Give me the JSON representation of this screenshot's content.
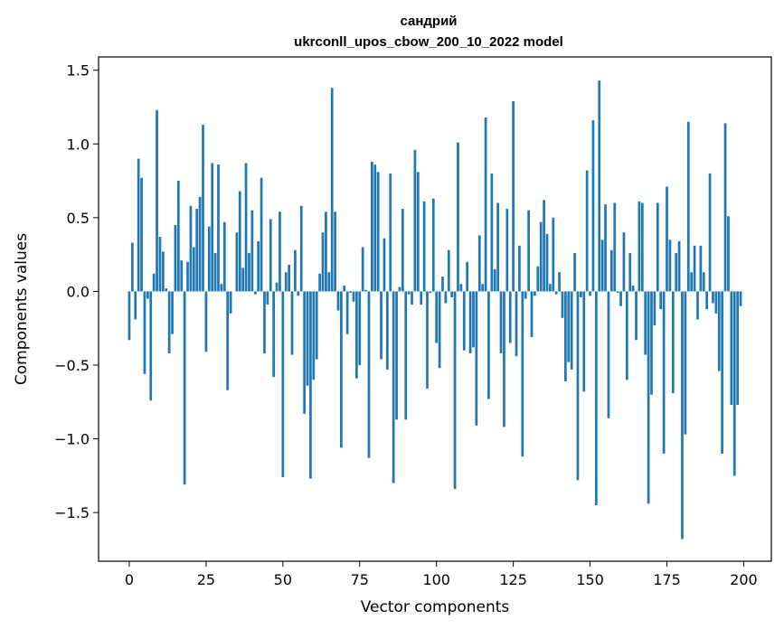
{
  "chart_data": {
    "type": "bar",
    "title": "сандрий",
    "subtitle": "ukrconll_upos_cbow_200_10_2022 model",
    "xlabel": "Vector components",
    "ylabel": "Components values",
    "xlim": [
      -10,
      209
    ],
    "ylim": [
      -1.83,
      1.59
    ],
    "xticks": [
      0,
      25,
      50,
      75,
      100,
      125,
      150,
      175,
      200
    ],
    "yticks": [
      -1.5,
      -1.0,
      -0.5,
      0.0,
      0.5,
      1.0,
      1.5
    ],
    "ytick_labels": [
      "−1.5",
      "−1.0",
      "−0.5",
      "0.0",
      "0.5",
      "1.0",
      "1.5"
    ],
    "bar_color": "#1f77b4",
    "grid": false,
    "x": [
      0,
      1,
      2,
      3,
      4,
      5,
      6,
      7,
      8,
      9,
      10,
      11,
      12,
      13,
      14,
      15,
      16,
      17,
      18,
      19,
      20,
      21,
      22,
      23,
      24,
      25,
      26,
      27,
      28,
      29,
      30,
      31,
      32,
      33,
      34,
      35,
      36,
      37,
      38,
      39,
      40,
      41,
      42,
      43,
      44,
      45,
      46,
      47,
      48,
      49,
      50,
      51,
      52,
      53,
      54,
      55,
      56,
      57,
      58,
      59,
      60,
      61,
      62,
      63,
      64,
      65,
      66,
      67,
      68,
      69,
      70,
      71,
      72,
      73,
      74,
      75,
      76,
      77,
      78,
      79,
      80,
      81,
      82,
      83,
      84,
      85,
      86,
      87,
      88,
      89,
      90,
      91,
      92,
      93,
      94,
      95,
      96,
      97,
      98,
      99,
      100,
      101,
      102,
      103,
      104,
      105,
      106,
      107,
      108,
      109,
      110,
      111,
      112,
      113,
      114,
      115,
      116,
      117,
      118,
      119,
      120,
      121,
      122,
      123,
      124,
      125,
      126,
      127,
      128,
      129,
      130,
      131,
      132,
      133,
      134,
      135,
      136,
      137,
      138,
      139,
      140,
      141,
      142,
      143,
      144,
      145,
      146,
      147,
      148,
      149,
      150,
      151,
      152,
      153,
      154,
      155,
      156,
      157,
      158,
      159,
      160,
      161,
      162,
      163,
      164,
      165,
      166,
      167,
      168,
      169,
      170,
      171,
      172,
      173,
      174,
      175,
      176,
      177,
      178,
      179,
      180,
      181,
      182,
      183,
      184,
      185,
      186,
      187,
      188,
      189,
      190,
      191,
      192,
      193,
      194,
      195,
      196,
      197,
      198,
      199
    ],
    "values": [
      -0.33,
      0.33,
      -0.19,
      0.9,
      0.77,
      -0.56,
      -0.05,
      -0.74,
      0.12,
      1.23,
      0.37,
      0.27,
      0.02,
      -0.42,
      -0.29,
      0.45,
      0.75,
      0.21,
      -1.31,
      0.2,
      0.58,
      0.3,
      0.56,
      0.64,
      1.13,
      -0.41,
      0.44,
      0.87,
      0.26,
      0.86,
      0.05,
      0.47,
      -0.67,
      -0.15,
      0.0,
      0.4,
      0.68,
      0.16,
      0.87,
      0.26,
      0.55,
      -0.02,
      0.34,
      0.77,
      -0.42,
      -0.09,
      0.49,
      -0.58,
      0.06,
      0.54,
      -1.26,
      0.13,
      0.18,
      -0.43,
      0.28,
      -0.03,
      0.58,
      -0.83,
      -0.64,
      -1.27,
      -0.6,
      -0.46,
      0.12,
      0.4,
      0.54,
      0.13,
      1.38,
      0.54,
      -0.13,
      -1.06,
      0.04,
      -0.29,
      -0.01,
      -0.07,
      -0.59,
      -0.5,
      0.3,
      0.01,
      -1.13,
      0.88,
      0.86,
      0.81,
      -0.46,
      0.36,
      -0.53,
      0.8,
      -1.3,
      -0.87,
      0.03,
      0.56,
      -0.87,
      -0.02,
      -0.09,
      0.96,
      0.81,
      -0.09,
      0.61,
      -0.66,
      -0.01,
      0.63,
      -0.35,
      -0.52,
      0.1,
      -0.08,
      0.28,
      -0.04,
      -1.34,
      1.01,
      0.05,
      -0.4,
      0.2,
      -0.42,
      -0.38,
      -0.91,
      0.38,
      0.05,
      1.18,
      -0.73,
      0.8,
      0.15,
      0.6,
      -0.42,
      -0.92,
      0.56,
      -0.35,
      1.29,
      -0.44,
      0.31,
      -1.12,
      -0.05,
      0.55,
      -0.31,
      -0.03,
      0.17,
      0.47,
      0.62,
      0.39,
      0.05,
      0.5,
      -0.02,
      0.13,
      -0.18,
      -0.61,
      -0.48,
      -0.53,
      0.26,
      -1.28,
      -0.04,
      -0.68,
      0.82,
      -0.03,
      1.16,
      -1.45,
      1.43,
      0.35,
      0.59,
      -0.86,
      0.28,
      0.6,
      -0.01,
      -0.1,
      0.4,
      -0.6,
      0.26,
      0.04,
      -0.33,
      0.61,
      0.6,
      -0.43,
      -1.44,
      -0.7,
      -0.23,
      0.6,
      -0.12,
      -1.1,
      0.71,
      0.35,
      -0.69,
      0.26,
      0.34,
      -1.68,
      -0.97,
      1.15,
      0.13,
      0.31,
      -0.19,
      0.31,
      0.13,
      -0.12,
      0.8,
      -0.08,
      -0.15,
      -0.54,
      -1.1,
      1.14,
      0.51,
      -0.77,
      -1.25,
      -0.77,
      -0.1
    ]
  }
}
